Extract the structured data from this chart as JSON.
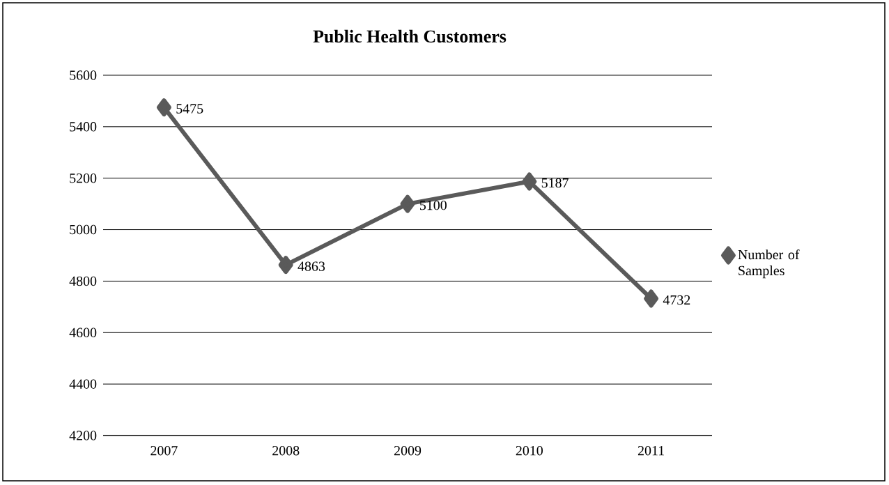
{
  "chart_data": {
    "type": "line",
    "title": "Public Health Customers",
    "categories": [
      "2007",
      "2008",
      "2009",
      "2010",
      "2011"
    ],
    "series": [
      {
        "name": "Number of Samples",
        "color": "#5a5a5a",
        "values": [
          5475,
          4863,
          5100,
          5187,
          4732
        ]
      }
    ],
    "ylim": [
      4200,
      5600
    ],
    "yticks": [
      4200,
      4400,
      4600,
      4800,
      5000,
      5200,
      5400,
      5600
    ],
    "grid": "y",
    "legend": "right",
    "marker": "diamond",
    "line_style": "solid",
    "data_labels": true
  }
}
